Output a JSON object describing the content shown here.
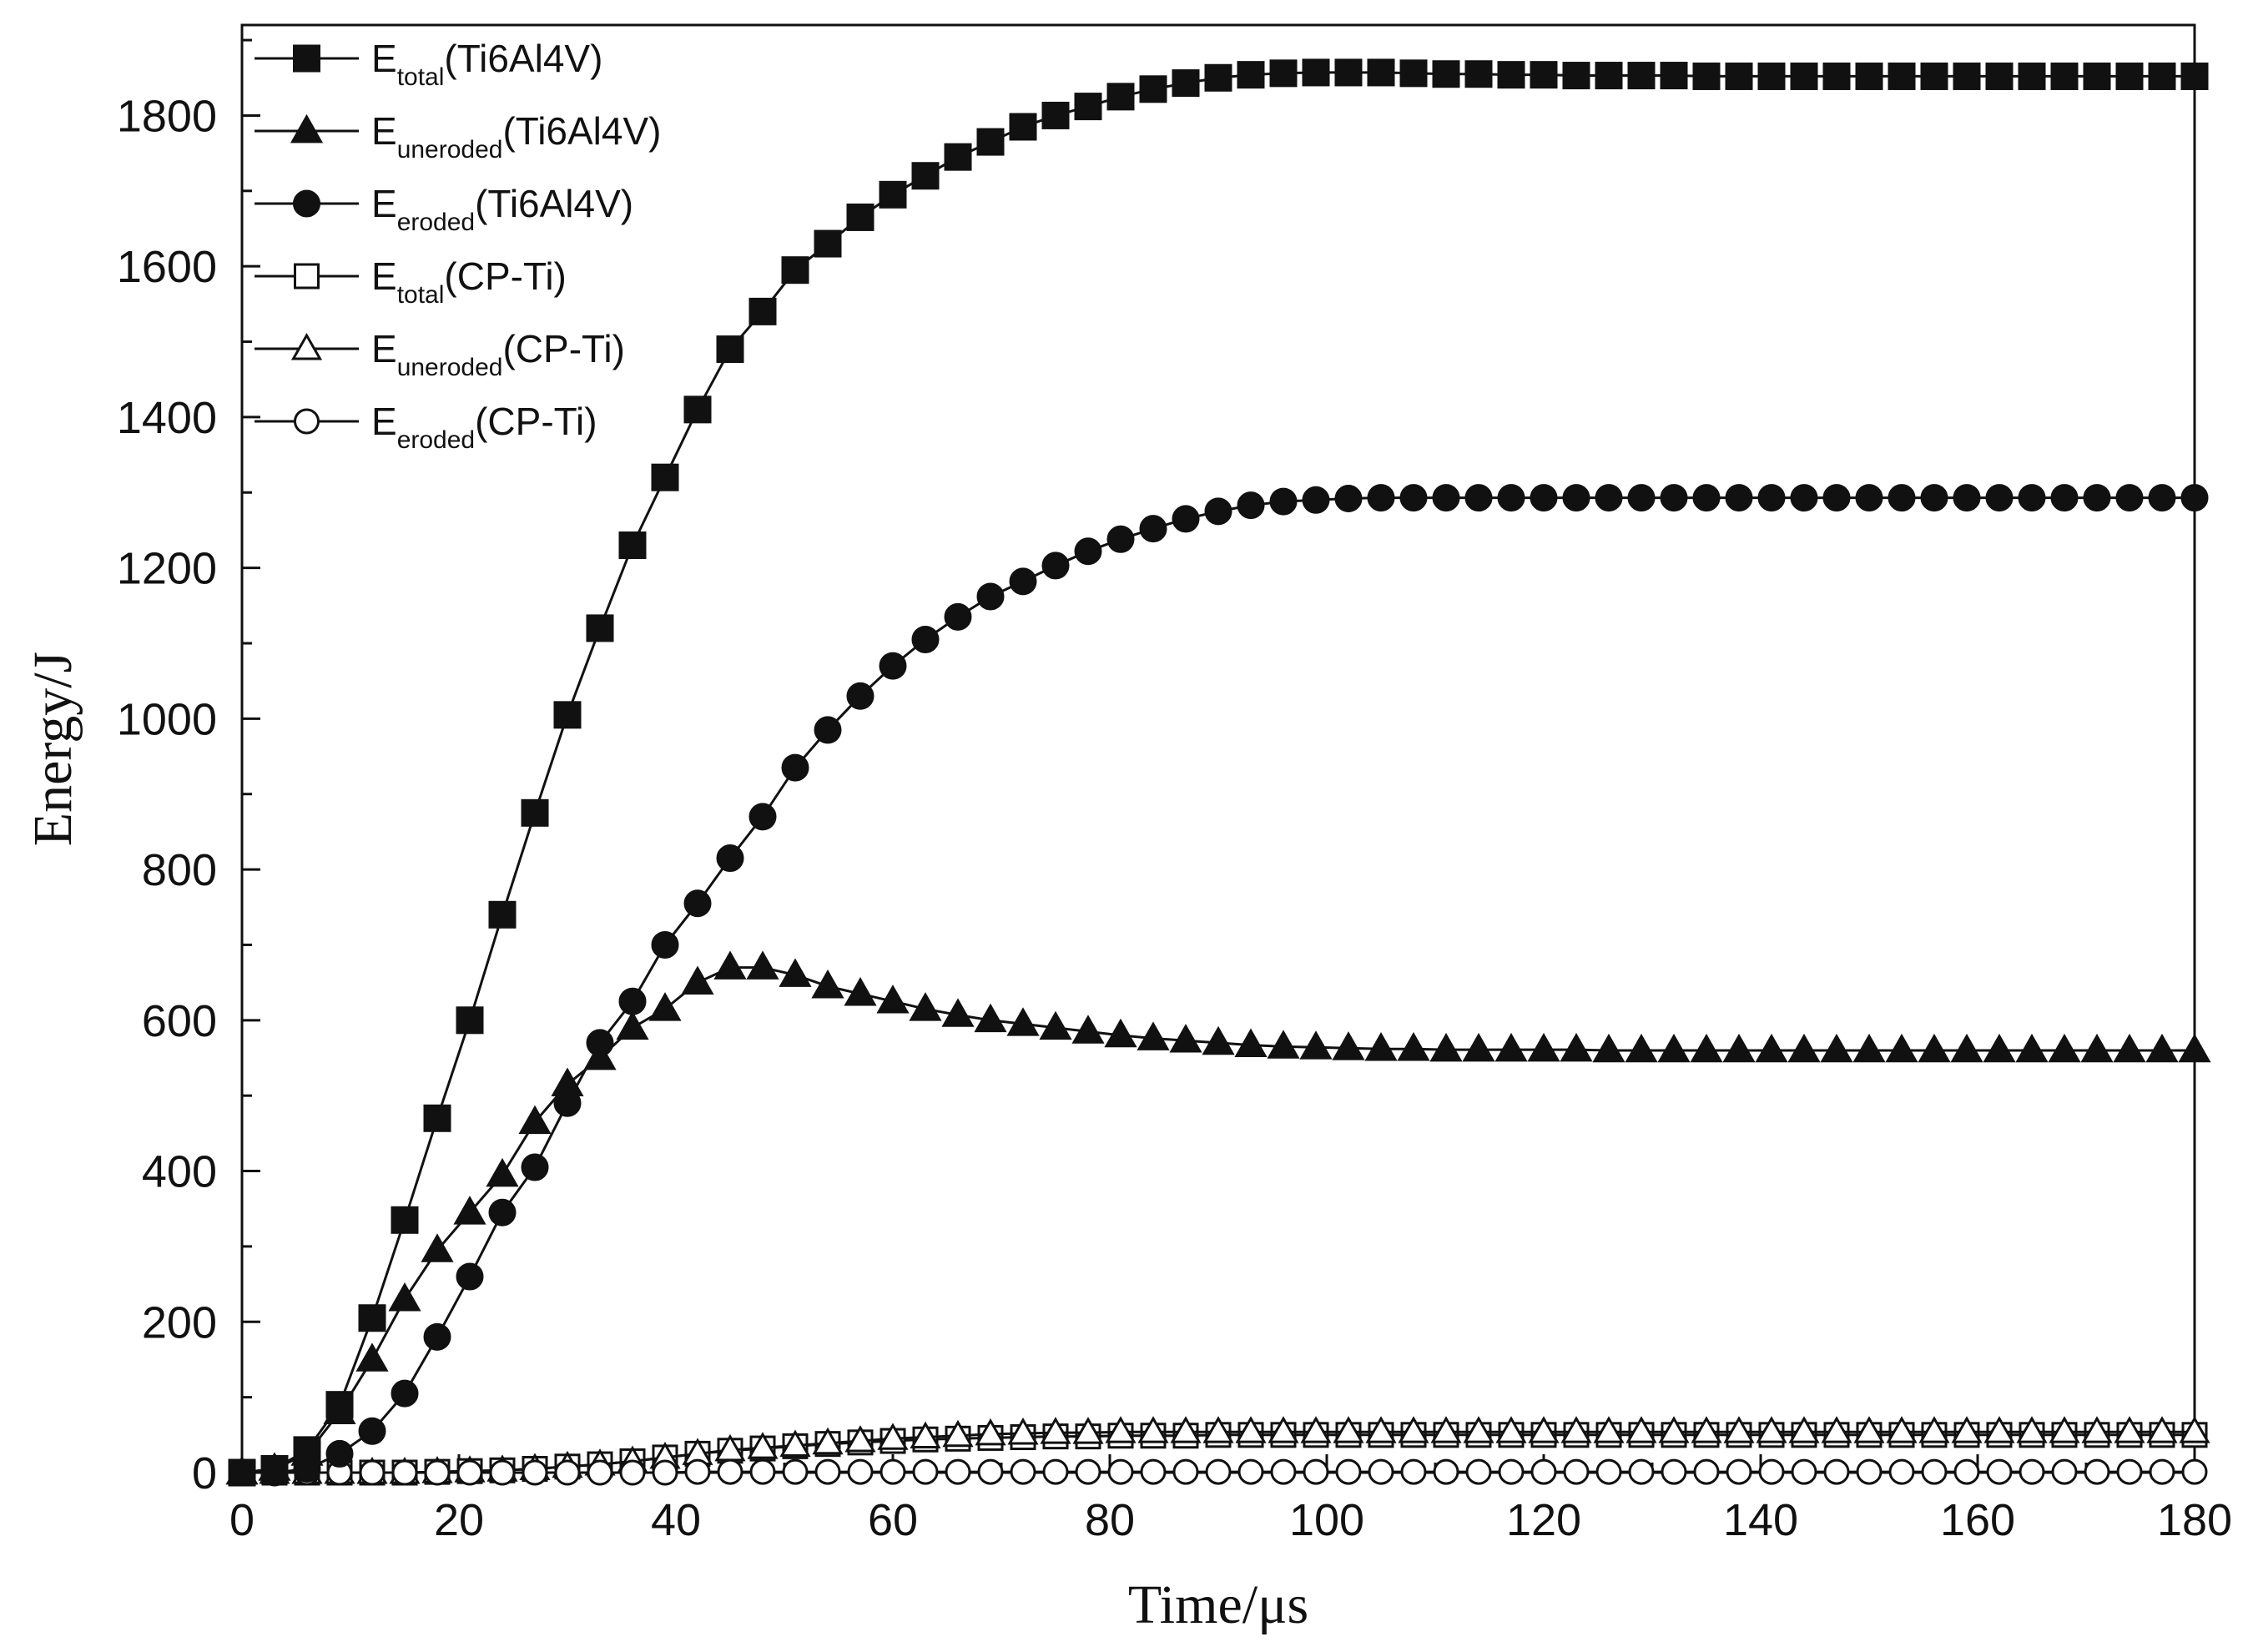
{
  "chart_data": {
    "type": "line",
    "title": "",
    "xlabel": "Time/μs",
    "ylabel": "Energy/J",
    "xlim": [
      0,
      180
    ],
    "ylim": [
      0,
      1920
    ],
    "xticks": [
      "0",
      "20",
      "40",
      "60",
      "80",
      "100",
      "120",
      "140",
      "160",
      "180"
    ],
    "yticks": [
      "0",
      "200",
      "400",
      "600",
      "800",
      "1000",
      "1200",
      "1400",
      "1600",
      "1800"
    ],
    "grid": false,
    "legend_position": "top-left",
    "x": [
      0,
      3,
      6,
      9,
      12,
      15,
      18,
      21,
      24,
      27,
      30,
      33,
      36,
      39,
      42,
      45,
      48,
      51,
      54,
      57,
      60,
      63,
      66,
      69,
      72,
      75,
      78,
      81,
      84,
      87,
      90,
      93,
      96,
      99,
      102,
      105,
      108,
      111,
      114,
      117,
      120,
      123,
      126,
      129,
      132,
      135,
      138,
      141,
      144,
      147,
      150,
      153,
      156,
      159,
      162,
      165,
      168,
      171,
      174,
      177,
      180
    ],
    "series": [
      {
        "name": "E_total(Ti6Al4V)",
        "label_main": "E",
        "label_sub": "total",
        "label_tail": "(Ti6Al4V)",
        "marker": "square",
        "filled": true,
        "values": [
          0,
          5,
          30,
          90,
          205,
          335,
          470,
          600,
          740,
          875,
          1005,
          1120,
          1230,
          1320,
          1410,
          1490,
          1540,
          1595,
          1630,
          1665,
          1695,
          1720,
          1745,
          1765,
          1785,
          1800,
          1812,
          1825,
          1835,
          1843,
          1850,
          1854,
          1856,
          1857,
          1857,
          1857,
          1856,
          1855,
          1855,
          1854,
          1854,
          1853,
          1853,
          1853,
          1853,
          1852,
          1852,
          1852,
          1852,
          1852,
          1852,
          1852,
          1852,
          1852,
          1852,
          1852,
          1852,
          1852,
          1852,
          1852,
          1852
        ]
      },
      {
        "name": "E_uneroded(Ti6Al4V)",
        "label_main": "E",
        "label_sub": "uneroded",
        "label_tail": "(Ti6Al4V)",
        "marker": "triangle",
        "filled": true,
        "values": [
          0,
          5,
          25,
          80,
          150,
          230,
          295,
          345,
          395,
          465,
          515,
          550,
          590,
          615,
          650,
          670,
          670,
          660,
          645,
          635,
          625,
          615,
          607,
          600,
          595,
          590,
          585,
          580,
          576,
          573,
          570,
          567,
          565,
          564,
          563,
          562,
          562,
          561,
          561,
          561,
          561,
          561,
          560,
          560,
          560,
          560,
          560,
          560,
          560,
          560,
          560,
          560,
          560,
          560,
          560,
          560,
          560,
          560,
          560,
          560,
          560
        ]
      },
      {
        "name": "E_eroded(Ti6Al4V)",
        "label_main": "E",
        "label_sub": "eroded",
        "label_tail": "(Ti6Al4V)",
        "marker": "circle",
        "filled": true,
        "values": [
          0,
          0,
          5,
          25,
          55,
          105,
          180,
          260,
          345,
          405,
          490,
          570,
          625,
          700,
          755,
          815,
          870,
          935,
          985,
          1030,
          1070,
          1105,
          1135,
          1162,
          1182,
          1203,
          1222,
          1238,
          1252,
          1265,
          1275,
          1283,
          1288,
          1290,
          1292,
          1293,
          1293,
          1293,
          1293,
          1293,
          1293,
          1293,
          1293,
          1293,
          1293,
          1293,
          1293,
          1293,
          1293,
          1293,
          1293,
          1293,
          1293,
          1293,
          1293,
          1293,
          1293,
          1293,
          1293,
          1293,
          1293
        ]
      },
      {
        "name": "E_total(CP-Ti)",
        "label_main": "E",
        "label_sub": "total",
        "label_tail": "(CP-Ti)",
        "marker": "square",
        "filled": false,
        "values": [
          0,
          0,
          0,
          0,
          0,
          0,
          1,
          2,
          3,
          5,
          8,
          11,
          15,
          20,
          25,
          29,
          32,
          35,
          38,
          40,
          42,
          44,
          45,
          46,
          47,
          48,
          48,
          49,
          49,
          49,
          50,
          50,
          50,
          50,
          50,
          50,
          50,
          50,
          50,
          50,
          50,
          50,
          50,
          50,
          50,
          50,
          50,
          50,
          50,
          50,
          50,
          50,
          50,
          50,
          50,
          50,
          50,
          50,
          50,
          50,
          50
        ]
      },
      {
        "name": "E_uneroded(CP-Ti)",
        "label_main": "E",
        "label_sub": "uneroded",
        "label_tail": "(CP-Ti)",
        "marker": "triangle",
        "filled": false,
        "values": [
          0,
          0,
          0,
          0,
          0,
          0,
          1,
          2,
          3,
          5,
          8,
          11,
          15,
          20,
          25,
          30,
          33,
          36,
          39,
          42,
          45,
          47,
          49,
          51,
          52,
          53,
          53,
          54,
          54,
          54,
          54,
          54,
          54,
          54,
          54,
          54,
          54,
          54,
          54,
          54,
          54,
          54,
          54,
          54,
          54,
          54,
          54,
          54,
          54,
          54,
          54,
          54,
          54,
          54,
          54,
          54,
          54,
          54,
          54,
          54,
          54
        ]
      },
      {
        "name": "E_eroded(CP-Ti)",
        "label_main": "E",
        "label_sub": "eroded",
        "label_tail": "(CP-Ti)",
        "marker": "circle",
        "filled": false,
        "values": [
          0,
          0,
          0,
          0,
          0,
          0,
          0,
          0,
          0,
          0,
          0,
          0,
          0,
          0,
          1,
          1,
          1,
          1,
          1,
          1,
          1,
          1,
          1,
          1,
          1,
          1,
          1,
          1,
          1,
          1,
          1,
          1,
          1,
          1,
          1,
          1,
          1,
          1,
          1,
          1,
          1,
          1,
          1,
          1,
          1,
          1,
          1,
          1,
          1,
          1,
          1,
          1,
          1,
          1,
          1,
          1,
          1,
          1,
          1,
          1,
          1
        ]
      }
    ]
  }
}
